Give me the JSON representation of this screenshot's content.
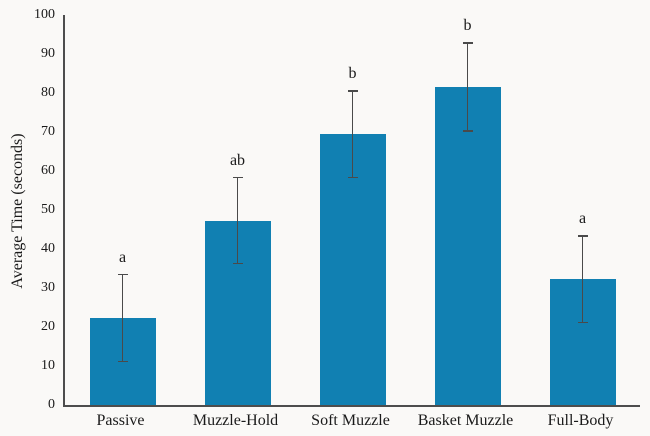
{
  "chart_data": {
    "type": "bar",
    "title": "",
    "categories": [
      "Passive",
      "Muzzle-Hold",
      "Soft Muzzle",
      "Basket Muzzle",
      "Full-Body"
    ],
    "values": [
      22.3,
      47.3,
      69.4,
      81.5,
      32.2
    ],
    "error_bars": [
      11.1,
      11.0,
      11.1,
      11.3,
      11.1
    ],
    "sig_letters": [
      "a",
      "ab",
      "b",
      "b",
      "a"
    ],
    "xlabel": "",
    "ylabel": "Average Time (seconds)",
    "ylim": [
      0,
      100
    ],
    "yticks": [
      0,
      10,
      20,
      30,
      40,
      50,
      60,
      70,
      80,
      90,
      100
    ],
    "grid": false,
    "legend": null,
    "colors": {
      "bar_fill": "#1180B2",
      "axis": "#4d4d4d",
      "error_bar": "#4a4a4a",
      "text": "#1a1a1a",
      "background": "#faf9f7"
    }
  }
}
